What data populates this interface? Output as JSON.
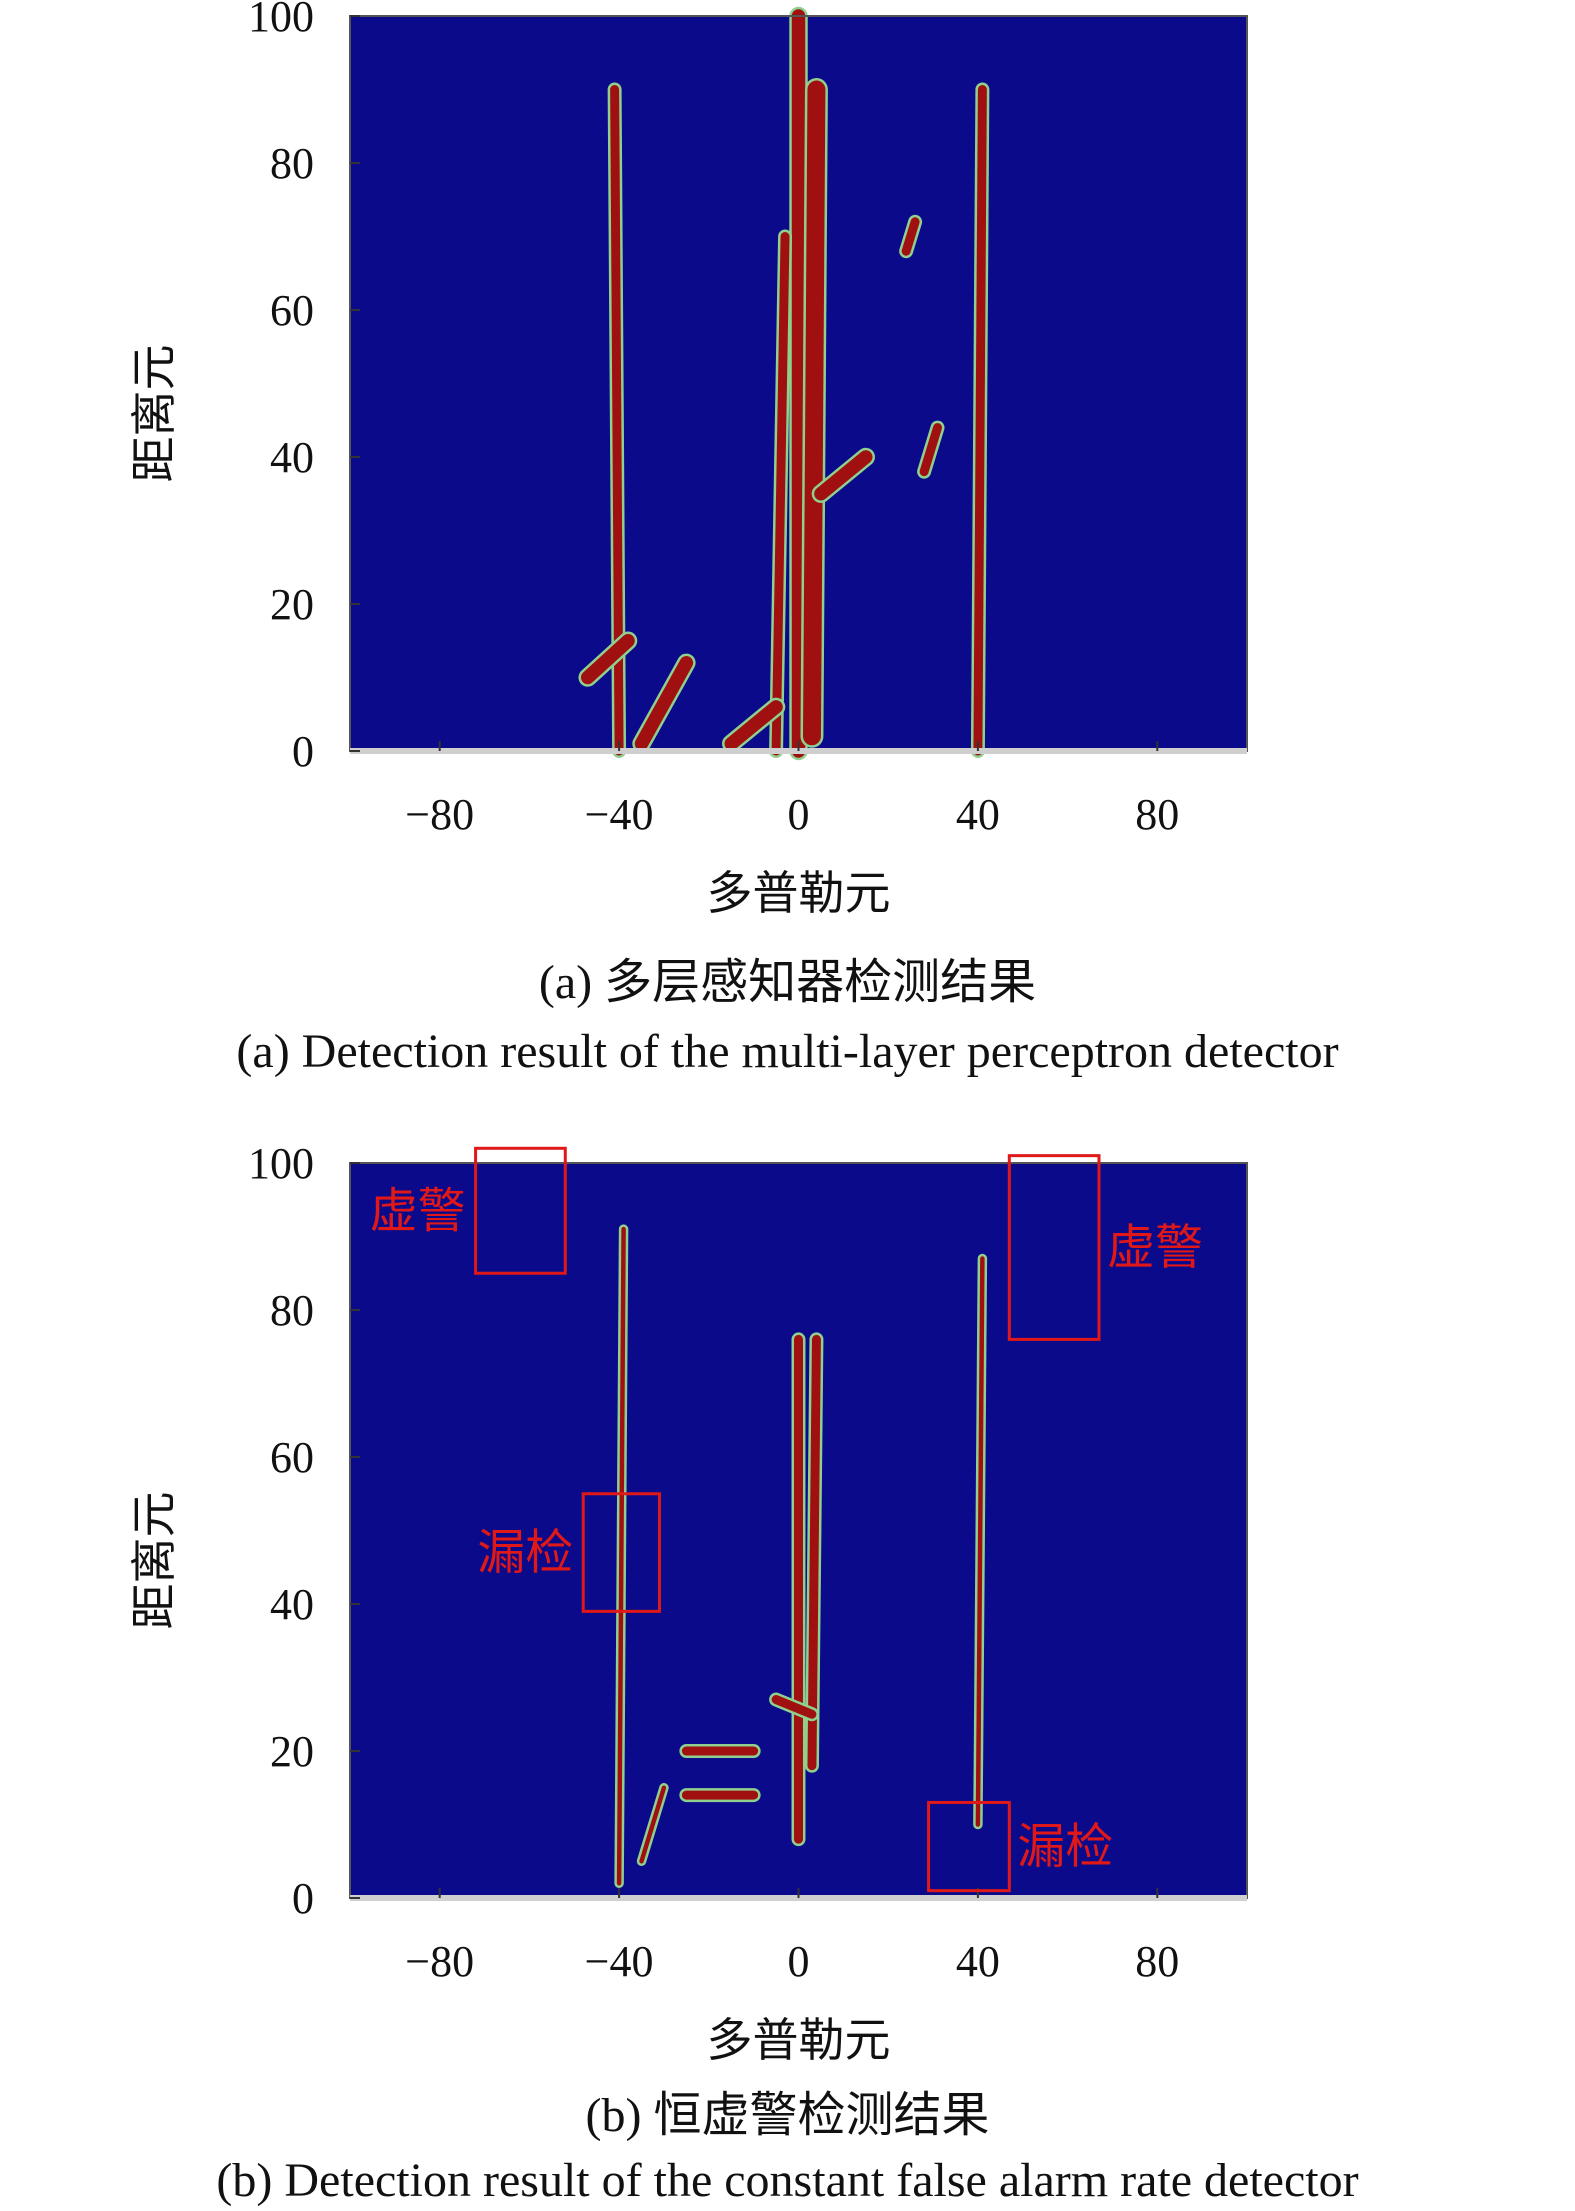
{
  "chart_data": [
    {
      "type": "heatmap",
      "panel": "a",
      "xlabel": "多普勒元",
      "ylabel": "距离元",
      "xlim": [
        -100,
        100
      ],
      "ylim": [
        0,
        100
      ],
      "xticks": [
        -80,
        -40,
        0,
        40,
        80
      ],
      "xtick_labels": [
        "−80",
        "−40",
        "0",
        "40",
        "80"
      ],
      "yticks": [
        0,
        20,
        40,
        60,
        80,
        100
      ],
      "ytick_labels": [
        "0",
        "20",
        "40",
        "60",
        "80",
        "100"
      ],
      "colors": {
        "background": "#0a0a8a",
        "detection": "#a01010",
        "edge": "#8fd08f"
      },
      "caption_cn": "(a) 多层感知器检测结果",
      "caption_en": "(a) Detection result of the multi-layer perceptron detector",
      "detections": [
        {
          "x": [
            -40,
            -41
          ],
          "y": [
            0,
            90
          ],
          "width": 2
        },
        {
          "x": [
            0,
            0
          ],
          "y": [
            0,
            100
          ],
          "width": 3
        },
        {
          "x": [
            3,
            4
          ],
          "y": [
            2,
            90
          ],
          "width": 4
        },
        {
          "x": [
            40,
            41
          ],
          "y": [
            0,
            90
          ],
          "width": 2
        },
        {
          "x": [
            -5,
            -3
          ],
          "y": [
            0,
            70
          ],
          "width": 2
        },
        {
          "x": [
            -47,
            -38
          ],
          "y": [
            10,
            15
          ],
          "width": 3
        },
        {
          "x": [
            -35,
            -25
          ],
          "y": [
            1,
            12
          ],
          "width": 3
        },
        {
          "x": [
            -15,
            -5
          ],
          "y": [
            1,
            6
          ],
          "width": 3
        },
        {
          "x": [
            5,
            15
          ],
          "y": [
            35,
            40
          ],
          "width": 3
        },
        {
          "x": [
            28,
            31
          ],
          "y": [
            38,
            44
          ],
          "width": 2
        },
        {
          "x": [
            24,
            26
          ],
          "y": [
            68,
            72
          ],
          "width": 2
        }
      ]
    },
    {
      "type": "heatmap",
      "panel": "b",
      "xlabel": "多普勒元",
      "ylabel": "距离元",
      "xlim": [
        -100,
        100
      ],
      "ylim": [
        0,
        100
      ],
      "xticks": [
        -80,
        -40,
        0,
        40,
        80
      ],
      "xtick_labels": [
        "−80",
        "−40",
        "0",
        "40",
        "80"
      ],
      "yticks": [
        0,
        20,
        40,
        60,
        80,
        100
      ],
      "ytick_labels": [
        "0",
        "20",
        "40",
        "60",
        "80",
        "100"
      ],
      "colors": {
        "background": "#0a0a8a",
        "detection": "#a01010",
        "edge": "#8fd08f",
        "annotation": "#e01818"
      },
      "caption_cn": "(b) 恒虚警检测结果",
      "caption_en": "(b) Detection result of the constant false alarm rate detector",
      "annotations": [
        {
          "label": "虚警",
          "x": [
            -72,
            -52
          ],
          "y": [
            85,
            102
          ]
        },
        {
          "label": "虚警",
          "x": [
            47,
            67
          ],
          "y": [
            76,
            101
          ]
        },
        {
          "label": "漏检",
          "x": [
            -48,
            -31
          ],
          "y": [
            39,
            55
          ]
        },
        {
          "label": "漏检",
          "x": [
            29,
            47
          ],
          "y": [
            1,
            13
          ]
        }
      ],
      "detections": [
        {
          "x": [
            -40,
            -39
          ],
          "y": [
            2,
            91
          ],
          "width": 1
        },
        {
          "x": [
            0,
            0
          ],
          "y": [
            8,
            76
          ],
          "width": 2
        },
        {
          "x": [
            3,
            4
          ],
          "y": [
            18,
            76
          ],
          "width": 2
        },
        {
          "x": [
            40,
            41
          ],
          "y": [
            10,
            87
          ],
          "width": 1
        },
        {
          "x": [
            -25,
            -10
          ],
          "y": [
            20,
            20
          ],
          "width": 2
        },
        {
          "x": [
            -25,
            -10
          ],
          "y": [
            14,
            14
          ],
          "width": 2
        },
        {
          "x": [
            -35,
            -30
          ],
          "y": [
            5,
            15
          ],
          "width": 1
        },
        {
          "x": [
            -5,
            3
          ],
          "y": [
            27,
            25
          ],
          "width": 2
        }
      ]
    }
  ]
}
